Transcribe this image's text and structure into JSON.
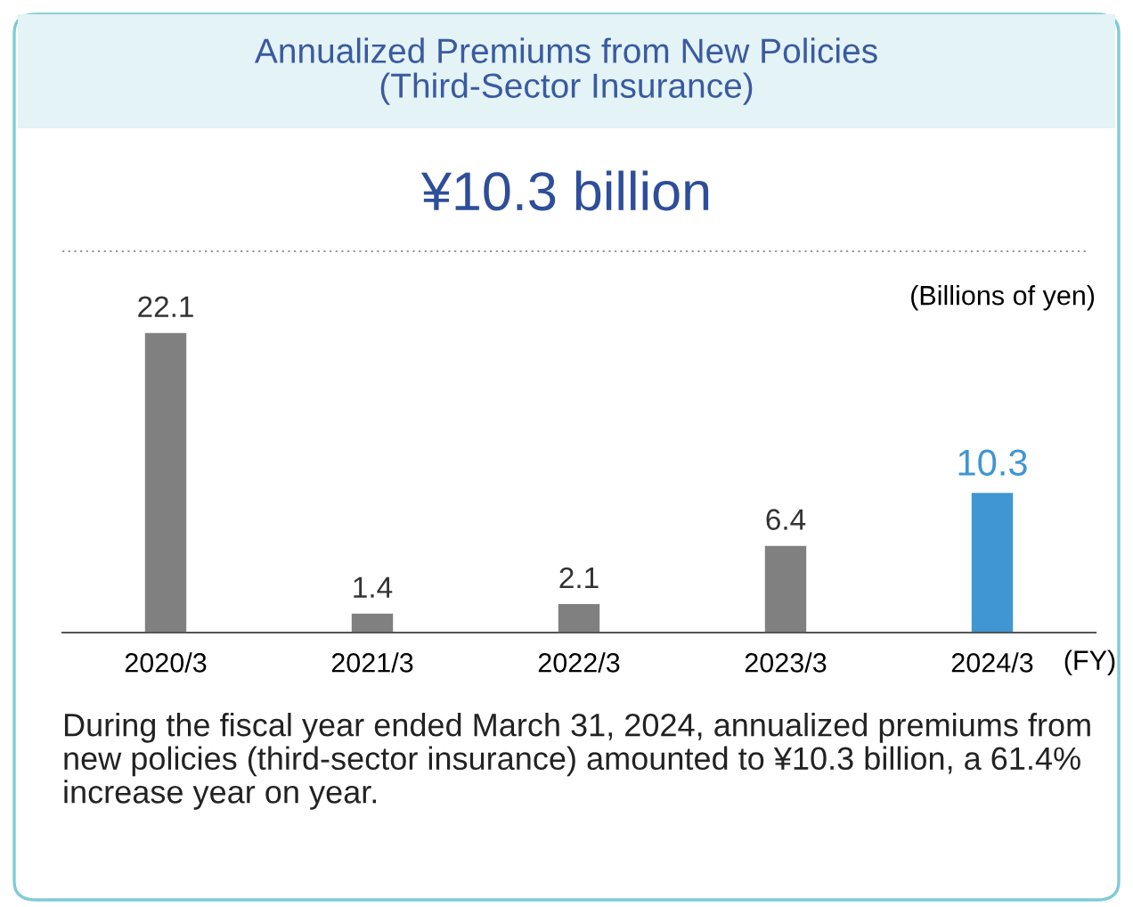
{
  "chart_data": {
    "type": "bar",
    "title": "Annualized Premiums from New Policies\n(Third-Sector Insurance)",
    "subtitle": "¥10.3 billion",
    "ylabel": "(Billions of yen)",
    "xlabel": "(FY)",
    "categories": [
      "2020/3",
      "2021/3",
      "2022/3",
      "2023/3",
      "2024/3"
    ],
    "values": [
      22.1,
      1.4,
      2.1,
      6.4,
      10.3
    ],
    "colors": [
      "#808080",
      "#808080",
      "#808080",
      "#808080",
      "#3f96d2"
    ],
    "data_labels": true,
    "tick_labels": "x",
    "annotations": [
      "During the fiscal year ended March 31, 2024, annualized premiums from new policies (third-sector insurance) amounted to ¥10.3 billion, a 61.4% increase year on year."
    ]
  }
}
